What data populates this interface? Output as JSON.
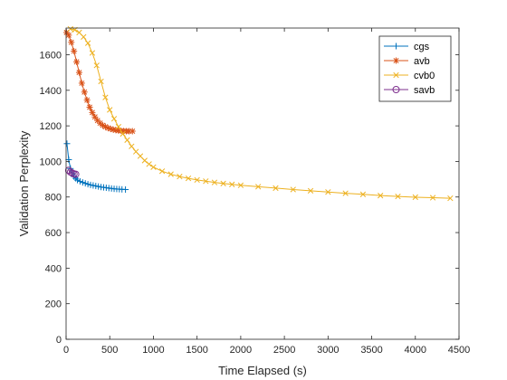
{
  "chart_data": {
    "type": "line",
    "title": "",
    "xlabel": "Time Elapsed (s)",
    "ylabel": "Validation Perplexity",
    "xlim": [
      0,
      4500
    ],
    "ylim": [
      0,
      1750
    ],
    "xticks": [
      0,
      500,
      1000,
      1500,
      2000,
      2500,
      3000,
      3500,
      4000,
      4500
    ],
    "yticks": [
      0,
      200,
      400,
      600,
      800,
      1000,
      1200,
      1400,
      1600
    ],
    "grid": false,
    "legend_position": "top-right",
    "series": [
      {
        "name": "cgs",
        "color": "#0072BD",
        "marker": "plus",
        "points": [
          [
            10,
            1100
          ],
          [
            30,
            1010
          ],
          [
            50,
            960
          ],
          [
            70,
            935
          ],
          [
            90,
            915
          ],
          [
            110,
            905
          ],
          [
            130,
            895
          ],
          [
            160,
            888
          ],
          [
            190,
            882
          ],
          [
            220,
            877
          ],
          [
            250,
            872
          ],
          [
            280,
            868
          ],
          [
            310,
            865
          ],
          [
            340,
            862
          ],
          [
            370,
            859
          ],
          [
            400,
            856
          ],
          [
            430,
            854
          ],
          [
            460,
            852
          ],
          [
            490,
            850
          ],
          [
            520,
            848
          ],
          [
            550,
            846
          ],
          [
            580,
            845
          ],
          [
            610,
            844
          ],
          [
            640,
            843
          ],
          [
            680,
            842
          ]
        ]
      },
      {
        "name": "avb",
        "color": "#D95319",
        "marker": "asterisk",
        "points": [
          [
            5,
            1725
          ],
          [
            30,
            1710
          ],
          [
            60,
            1670
          ],
          [
            90,
            1620
          ],
          [
            120,
            1560
          ],
          [
            150,
            1500
          ],
          [
            180,
            1440
          ],
          [
            210,
            1390
          ],
          [
            240,
            1345
          ],
          [
            270,
            1305
          ],
          [
            300,
            1275
          ],
          [
            330,
            1250
          ],
          [
            360,
            1230
          ],
          [
            390,
            1215
          ],
          [
            420,
            1203
          ],
          [
            450,
            1195
          ],
          [
            480,
            1188
          ],
          [
            510,
            1183
          ],
          [
            540,
            1179
          ],
          [
            570,
            1176
          ],
          [
            600,
            1174
          ],
          [
            630,
            1172
          ],
          [
            660,
            1171
          ],
          [
            690,
            1170
          ],
          [
            720,
            1170
          ],
          [
            760,
            1170
          ]
        ]
      },
      {
        "name": "cvb0",
        "color": "#EDB120",
        "marker": "x",
        "points": [
          [
            50,
            1745
          ],
          [
            100,
            1740
          ],
          [
            150,
            1725
          ],
          [
            200,
            1700
          ],
          [
            250,
            1665
          ],
          [
            300,
            1610
          ],
          [
            350,
            1540
          ],
          [
            400,
            1450
          ],
          [
            450,
            1360
          ],
          [
            500,
            1290
          ],
          [
            550,
            1240
          ],
          [
            600,
            1195
          ],
          [
            650,
            1155
          ],
          [
            700,
            1120
          ],
          [
            750,
            1085
          ],
          [
            800,
            1055
          ],
          [
            850,
            1030
          ],
          [
            900,
            1005
          ],
          [
            950,
            985
          ],
          [
            1000,
            968
          ],
          [
            1100,
            945
          ],
          [
            1200,
            928
          ],
          [
            1300,
            915
          ],
          [
            1400,
            905
          ],
          [
            1500,
            896
          ],
          [
            1600,
            889
          ],
          [
            1700,
            882
          ],
          [
            1800,
            876
          ],
          [
            1900,
            871
          ],
          [
            2000,
            866
          ],
          [
            2200,
            858
          ],
          [
            2400,
            850
          ],
          [
            2600,
            842
          ],
          [
            2800,
            835
          ],
          [
            3000,
            828
          ],
          [
            3200,
            821
          ],
          [
            3400,
            815
          ],
          [
            3600,
            808
          ],
          [
            3800,
            803
          ],
          [
            4000,
            799
          ],
          [
            4200,
            796
          ],
          [
            4400,
            793
          ]
        ]
      },
      {
        "name": "savb",
        "color": "#7E2F8E",
        "marker": "circle",
        "points": [
          [
            30,
            950
          ],
          [
            50,
            940
          ],
          [
            70,
            935
          ],
          [
            90,
            930
          ],
          [
            110,
            928
          ]
        ]
      }
    ]
  }
}
